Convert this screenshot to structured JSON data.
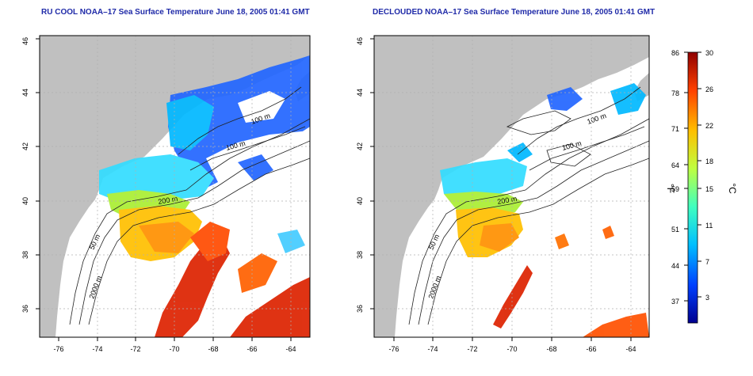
{
  "left_panel": {
    "title": "RU COOL NOAA–17 Sea Surface Temperature June 18, 2005 01:41 GMT",
    "contours": [
      "50 m",
      "100 m",
      "100 m",
      "200 m",
      "2000 m"
    ],
    "x_ticks": [
      "-76",
      "-74",
      "-72",
      "-70",
      "-68",
      "-66",
      "-64"
    ],
    "y_ticks": [
      "36",
      "38",
      "40",
      "42",
      "44",
      "46"
    ]
  },
  "right_panel": {
    "title": "DECLOUDED NOAA–17 Sea Surface Temperature June 18, 2005 01:41 GMT",
    "contours": [
      "50 m",
      "100 m",
      "100 m",
      "200 m",
      "2000 m"
    ],
    "x_ticks": [
      "-76",
      "-74",
      "-72",
      "-70",
      "-68",
      "-66",
      "-64"
    ],
    "y_ticks": [
      "36",
      "38",
      "40",
      "42",
      "44",
      "46"
    ]
  },
  "colorbar": {
    "fahrenheit_label": "°F",
    "celsius_label": "°C",
    "fahrenheit_ticks": [
      "86",
      "78",
      "71",
      "64",
      "59",
      "51",
      "44",
      "37"
    ],
    "celsius_ticks": [
      "30",
      "26",
      "22",
      "18",
      "15",
      "11",
      "7",
      "3"
    ],
    "colors": [
      "#00008f",
      "#0040ff",
      "#00bfff",
      "#40ffbf",
      "#bfff40",
      "#ffbf00",
      "#ff4000",
      "#8f0000"
    ]
  },
  "colors": {
    "land": "#c0c0c0",
    "title": "#1f2aa8",
    "grid": "#b0b0b0"
  }
}
